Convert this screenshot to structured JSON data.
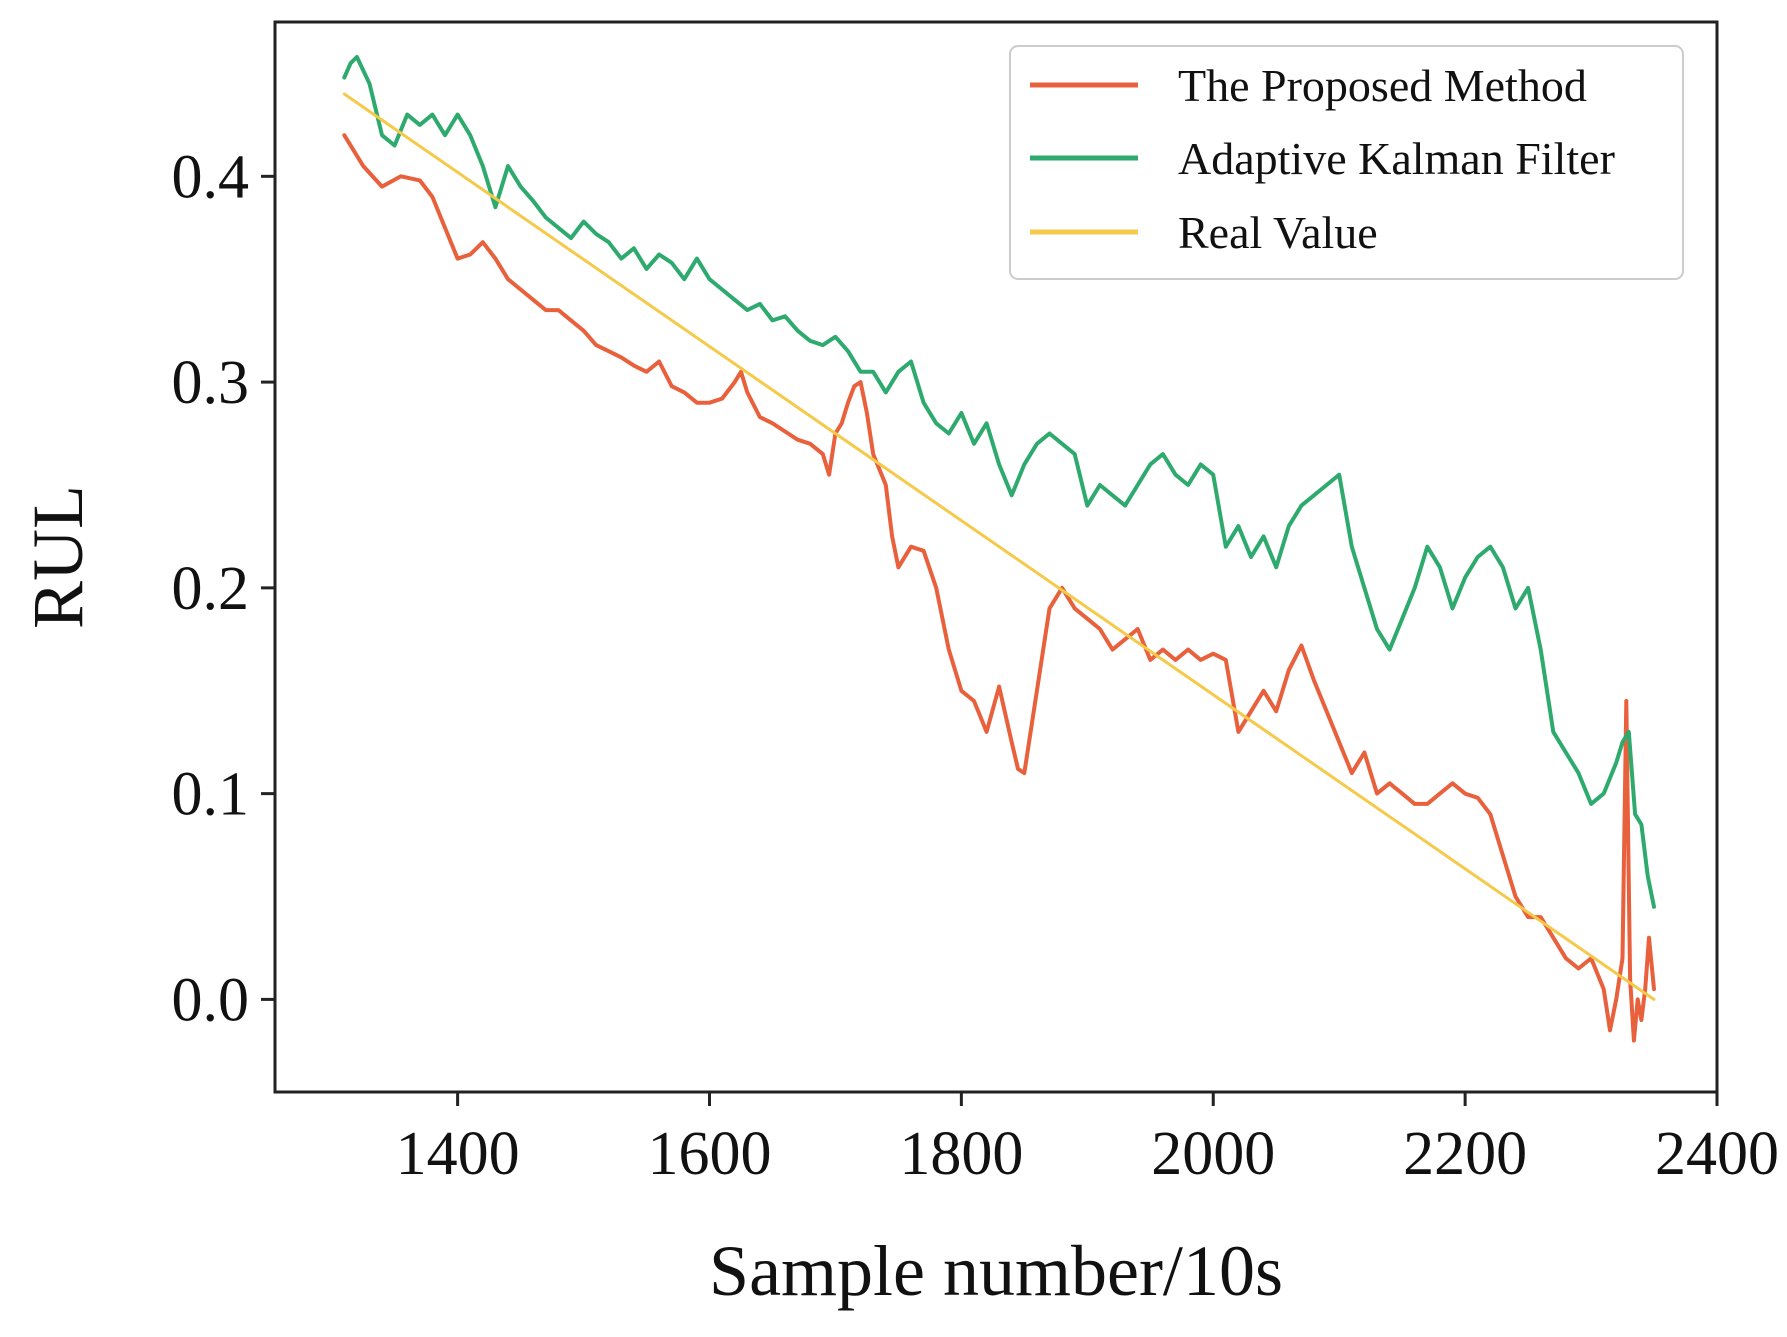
{
  "chart_data": {
    "type": "line",
    "title": "",
    "xlabel": "Sample number/10s",
    "ylabel": "RUL",
    "xlim": [
      1255,
      2400
    ],
    "ylim": [
      -0.045,
      0.475
    ],
    "xticks": [
      1400,
      1600,
      1800,
      2000,
      2200,
      2400
    ],
    "xtick_labels": [
      "1400",
      "1600",
      "1800",
      "2000",
      "2200",
      "2400"
    ],
    "yticks": [
      0.0,
      0.1,
      0.2,
      0.3,
      0.4
    ],
    "ytick_labels": [
      "0.0",
      "0.1",
      "0.2",
      "0.3",
      "0.4"
    ],
    "grid": false,
    "legend_position": "top-right",
    "series": [
      {
        "name": "The Proposed Method",
        "color": "#e8603c",
        "x": [
          1310,
          1325,
          1340,
          1355,
          1370,
          1380,
          1390,
          1400,
          1410,
          1420,
          1430,
          1440,
          1450,
          1460,
          1470,
          1480,
          1490,
          1500,
          1510,
          1520,
          1530,
          1540,
          1550,
          1560,
          1570,
          1580,
          1590,
          1600,
          1610,
          1620,
          1625,
          1630,
          1640,
          1650,
          1660,
          1670,
          1680,
          1690,
          1695,
          1700,
          1705,
          1710,
          1715,
          1720,
          1725,
          1730,
          1740,
          1745,
          1750,
          1760,
          1770,
          1780,
          1790,
          1800,
          1810,
          1820,
          1830,
          1840,
          1845,
          1850,
          1860,
          1870,
          1880,
          1890,
          1900,
          1910,
          1920,
          1930,
          1940,
          1950,
          1960,
          1970,
          1980,
          1990,
          2000,
          2010,
          2020,
          2030,
          2040,
          2050,
          2060,
          2070,
          2080,
          2090,
          2100,
          2110,
          2120,
          2130,
          2140,
          2150,
          2160,
          2170,
          2180,
          2190,
          2200,
          2210,
          2220,
          2230,
          2240,
          2250,
          2260,
          2270,
          2280,
          2290,
          2300,
          2310,
          2315,
          2320,
          2325,
          2328,
          2331,
          2334,
          2337,
          2340,
          2343,
          2346,
          2350
        ],
        "values": [
          0.42,
          0.405,
          0.395,
          0.4,
          0.398,
          0.39,
          0.375,
          0.36,
          0.362,
          0.368,
          0.36,
          0.35,
          0.345,
          0.34,
          0.335,
          0.335,
          0.33,
          0.325,
          0.318,
          0.315,
          0.312,
          0.308,
          0.305,
          0.31,
          0.298,
          0.295,
          0.29,
          0.29,
          0.292,
          0.3,
          0.305,
          0.295,
          0.283,
          0.28,
          0.276,
          0.272,
          0.27,
          0.265,
          0.255,
          0.275,
          0.28,
          0.29,
          0.298,
          0.3,
          0.285,
          0.265,
          0.25,
          0.225,
          0.21,
          0.22,
          0.218,
          0.2,
          0.17,
          0.15,
          0.145,
          0.13,
          0.152,
          0.125,
          0.112,
          0.11,
          0.15,
          0.19,
          0.2,
          0.19,
          0.185,
          0.18,
          0.17,
          0.175,
          0.18,
          0.165,
          0.17,
          0.165,
          0.17,
          0.165,
          0.168,
          0.165,
          0.13,
          0.14,
          0.15,
          0.14,
          0.16,
          0.172,
          0.155,
          0.14,
          0.125,
          0.11,
          0.12,
          0.1,
          0.105,
          0.1,
          0.095,
          0.095,
          0.1,
          0.105,
          0.1,
          0.098,
          0.09,
          0.07,
          0.05,
          0.04,
          0.04,
          0.03,
          0.02,
          0.015,
          0.02,
          0.005,
          -0.015,
          0.0,
          0.02,
          0.145,
          0.01,
          -0.02,
          0.0,
          -0.01,
          0.005,
          0.03,
          0.005
        ]
      },
      {
        "name": "Adaptive Kalman Filter",
        "color": "#2eaa6e",
        "x": [
          1310,
          1315,
          1320,
          1330,
          1340,
          1350,
          1360,
          1370,
          1380,
          1390,
          1400,
          1410,
          1420,
          1430,
          1440,
          1450,
          1460,
          1470,
          1480,
          1490,
          1500,
          1510,
          1520,
          1530,
          1540,
          1550,
          1560,
          1570,
          1580,
          1590,
          1600,
          1610,
          1620,
          1630,
          1640,
          1650,
          1660,
          1670,
          1680,
          1690,
          1700,
          1710,
          1720,
          1730,
          1740,
          1750,
          1760,
          1770,
          1780,
          1790,
          1800,
          1810,
          1820,
          1830,
          1840,
          1850,
          1860,
          1870,
          1880,
          1890,
          1900,
          1910,
          1920,
          1930,
          1940,
          1950,
          1960,
          1970,
          1980,
          1990,
          2000,
          2010,
          2020,
          2030,
          2040,
          2050,
          2060,
          2070,
          2080,
          2090,
          2100,
          2110,
          2120,
          2130,
          2140,
          2150,
          2160,
          2170,
          2180,
          2190,
          2200,
          2210,
          2220,
          2230,
          2240,
          2250,
          2260,
          2270,
          2280,
          2290,
          2300,
          2310,
          2320,
          2325,
          2330,
          2335,
          2340,
          2345,
          2350
        ],
        "values": [
          0.448,
          0.455,
          0.458,
          0.445,
          0.42,
          0.415,
          0.43,
          0.425,
          0.43,
          0.42,
          0.43,
          0.42,
          0.405,
          0.385,
          0.405,
          0.395,
          0.388,
          0.38,
          0.375,
          0.37,
          0.378,
          0.372,
          0.368,
          0.36,
          0.365,
          0.355,
          0.362,
          0.358,
          0.35,
          0.36,
          0.35,
          0.345,
          0.34,
          0.335,
          0.338,
          0.33,
          0.332,
          0.325,
          0.32,
          0.318,
          0.322,
          0.315,
          0.305,
          0.305,
          0.295,
          0.305,
          0.31,
          0.29,
          0.28,
          0.275,
          0.285,
          0.27,
          0.28,
          0.26,
          0.245,
          0.26,
          0.27,
          0.275,
          0.27,
          0.265,
          0.24,
          0.25,
          0.245,
          0.24,
          0.25,
          0.26,
          0.265,
          0.255,
          0.25,
          0.26,
          0.255,
          0.22,
          0.23,
          0.215,
          0.225,
          0.21,
          0.23,
          0.24,
          0.245,
          0.25,
          0.255,
          0.22,
          0.2,
          0.18,
          0.17,
          0.185,
          0.2,
          0.22,
          0.21,
          0.19,
          0.205,
          0.215,
          0.22,
          0.21,
          0.19,
          0.2,
          0.17,
          0.13,
          0.12,
          0.11,
          0.095,
          0.1,
          0.115,
          0.125,
          0.13,
          0.09,
          0.085,
          0.06,
          0.045
        ]
      },
      {
        "name": "Real Value",
        "color": "#f5c94a",
        "x": [
          1310,
          2350
        ],
        "values": [
          0.44,
          0.0
        ]
      }
    ]
  }
}
